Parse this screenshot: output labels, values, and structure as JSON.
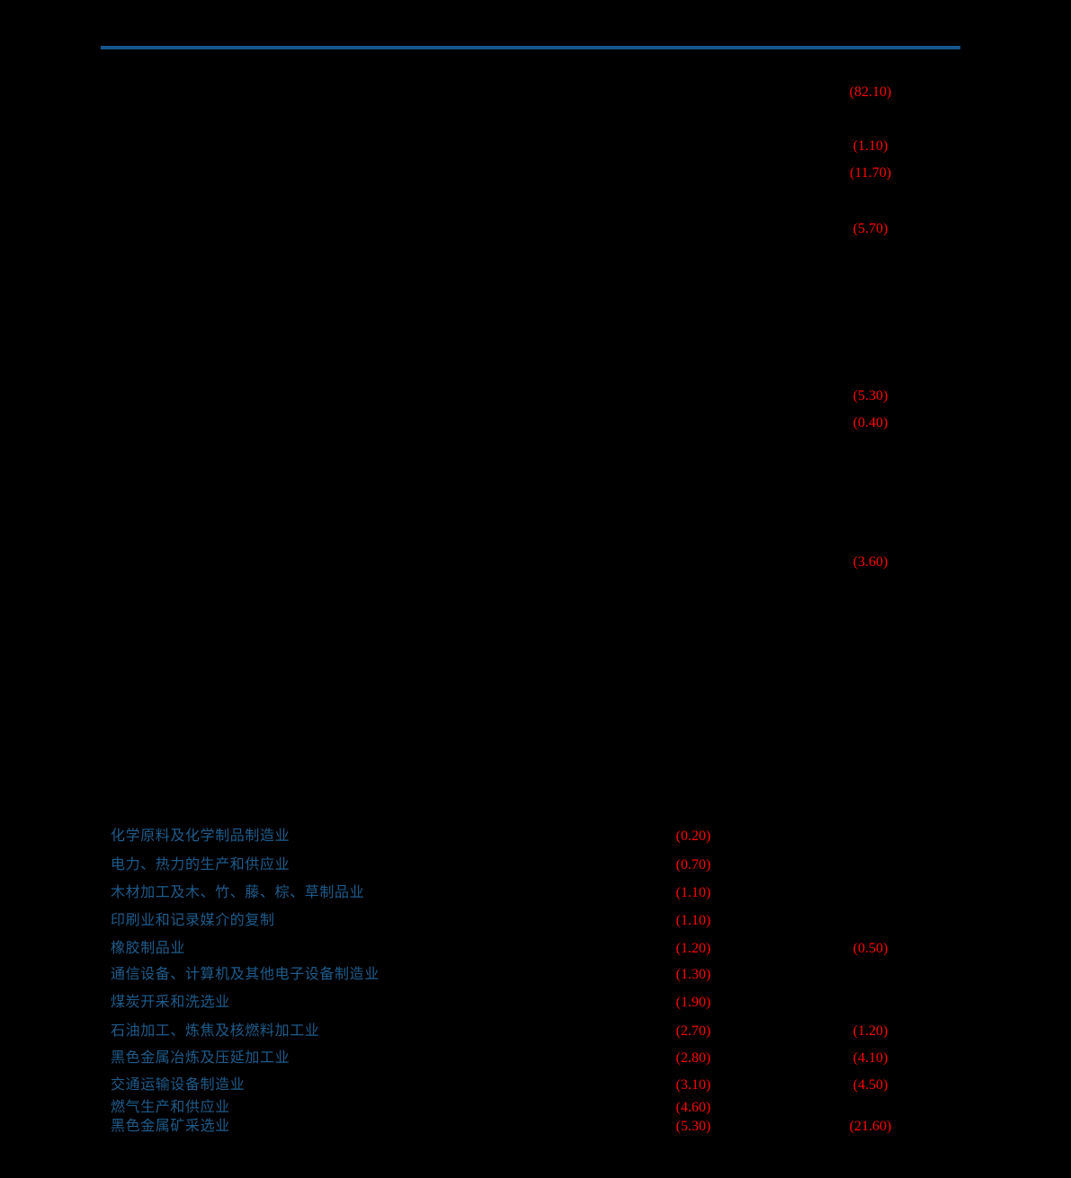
{
  "colors": {
    "background": "#000000",
    "rule_blue": "#17568C",
    "text_blue": "#1E5C8C",
    "value_red": "#FF0000"
  },
  "upper_section": {
    "values": [
      {
        "text": "(82.10)"
      },
      {
        "text": "(1.10)"
      },
      {
        "text": "(11.70)"
      },
      {
        "text": "(5.70)"
      },
      {
        "text": "(5.30)"
      },
      {
        "text": "(0.40)"
      },
      {
        "text": "(3.60)"
      }
    ]
  },
  "industry_table": {
    "rows": [
      {
        "name": "化学原料及化学制品制造业",
        "value1": "(0.20)",
        "value2": ""
      },
      {
        "name": "电力、热力的生产和供应业",
        "value1": "(0.70)",
        "value2": ""
      },
      {
        "name": "木材加工及木、竹、藤、棕、草制品业",
        "value1": "(1.10)",
        "value2": ""
      },
      {
        "name": "印刷业和记录媒介的复制",
        "value1": "(1.10)",
        "value2": ""
      },
      {
        "name": "橡胶制品业",
        "value1": "(1.20)",
        "value2": "(0.50)"
      },
      {
        "name": "通信设备、计算机及其他电子设备制造业",
        "value1": "(1.30)",
        "value2": ""
      },
      {
        "name": "煤炭开采和洗选业",
        "value1": "(1.90)",
        "value2": ""
      },
      {
        "name": "石油加工、炼焦及核燃料加工业",
        "value1": "(2.70)",
        "value2": "(1.20)"
      },
      {
        "name": "黑色金属冶炼及压延加工业",
        "value1": "(2.80)",
        "value2": "(4.10)"
      },
      {
        "name": "交通运输设备制造业",
        "value1": "(3.10)",
        "value2": "(4.50)"
      },
      {
        "name": "燃气生产和供应业",
        "value1": "(4.60)",
        "value2": ""
      },
      {
        "name": "黑色金属矿采选业",
        "value1": "(5.30)",
        "value2": "(21.60)"
      }
    ]
  }
}
